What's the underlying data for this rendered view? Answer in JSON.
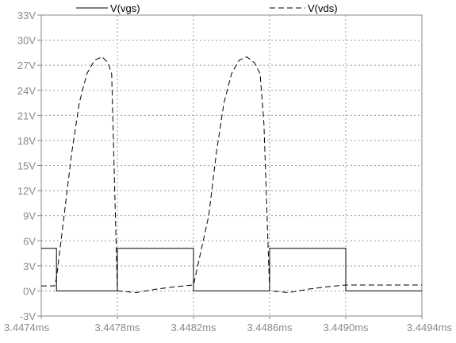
{
  "chart_data": {
    "type": "line",
    "title": "",
    "xlabel": "",
    "ylabel": "",
    "grid": true,
    "legend_position": "top",
    "xlim": [
      3.4474,
      3.4494
    ],
    "ylim": [
      -3,
      33
    ],
    "x_unit": "ms",
    "y_unit": "V",
    "x_ticks": [
      "3.4474ms",
      "3.4478ms",
      "3.4482ms",
      "3.4486ms",
      "3.4490ms",
      "3.4494ms"
    ],
    "y_ticks": [
      "-3V",
      "0V",
      "3V",
      "6V",
      "9V",
      "12V",
      "15V",
      "18V",
      "21V",
      "24V",
      "27V",
      "30V",
      "33V"
    ],
    "series": [
      {
        "name": "V(vgs)",
        "style": "solid",
        "color": "#000000",
        "x": [
          3.4474,
          3.44748,
          3.44748,
          3.4478,
          3.4478,
          3.4482,
          3.4482,
          3.4486,
          3.4486,
          3.449,
          3.449,
          3.4494
        ],
        "y": [
          5.1,
          5.1,
          0.0,
          0.0,
          5.1,
          5.1,
          0.0,
          0.0,
          5.1,
          5.1,
          0.0,
          0.0
        ]
      },
      {
        "name": "V(vds)",
        "style": "dashed",
        "color": "#000000",
        "x": [
          3.4474,
          3.44747,
          3.44748,
          3.44752,
          3.44756,
          3.4476,
          3.44764,
          3.44768,
          3.44772,
          3.44775,
          3.44777,
          3.4478,
          3.4479,
          3.448,
          3.4481,
          3.4482,
          3.44828,
          3.44832,
          3.44836,
          3.4484,
          3.44844,
          3.44848,
          3.44852,
          3.44855,
          3.44857,
          3.4486,
          3.4487,
          3.4488,
          3.4489,
          3.449,
          3.4494
        ],
        "y": [
          0.6,
          0.6,
          1.5,
          9.0,
          16.5,
          22.5,
          26.0,
          27.6,
          28.0,
          27.3,
          26.0,
          0.0,
          -0.2,
          0.2,
          0.5,
          0.7,
          9.0,
          16.5,
          22.5,
          26.0,
          27.6,
          28.0,
          27.3,
          26.0,
          20.0,
          0.0,
          -0.2,
          0.2,
          0.5,
          0.7,
          0.7
        ]
      }
    ]
  }
}
